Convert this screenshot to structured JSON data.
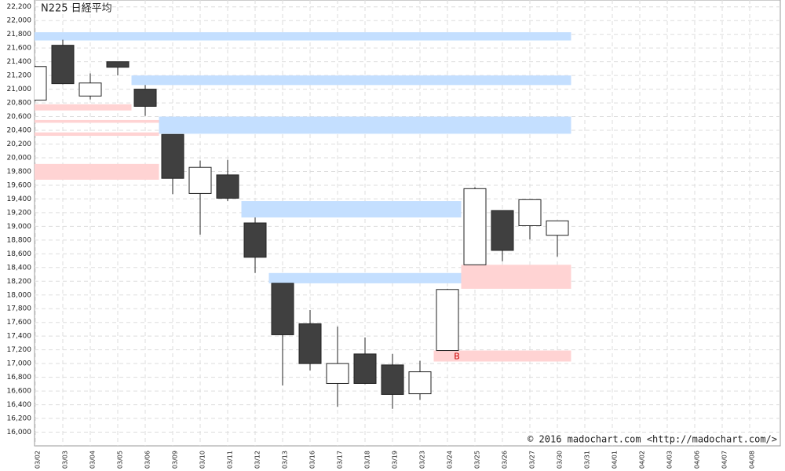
{
  "chart_data": {
    "type": "candlestick",
    "title": "N225 日経平均",
    "copyright": "© 2016 madochart.com  <http://madochart.com/>",
    "categories": [
      "03/02",
      "03/03",
      "03/04",
      "03/05",
      "03/06",
      "03/09",
      "03/10",
      "03/11",
      "03/12",
      "03/13",
      "03/16",
      "03/17",
      "03/18",
      "03/19",
      "03/23",
      "03/24",
      "03/25",
      "03/26",
      "03/27",
      "03/30",
      "03/31",
      "04/01",
      "04/02",
      "04/03",
      "04/06",
      "04/07",
      "04/08"
    ],
    "open": [
      20840,
      21640,
      20900,
      21400,
      21000,
      20340,
      19480,
      19750,
      19050,
      18170,
      17580,
      16710,
      17140,
      16980,
      16560,
      17190,
      18440,
      19230,
      19010,
      18870,
      null,
      null,
      null,
      null,
      null,
      null,
      null
    ],
    "high": [
      21340,
      21720,
      21230,
      21400,
      21060,
      20340,
      19960,
      19970,
      19130,
      18170,
      17780,
      17540,
      17380,
      17140,
      17040,
      18090,
      19570,
      19230,
      19390,
      19080,
      null,
      null,
      null,
      null,
      null,
      null,
      null
    ],
    "low": [
      20830,
      21070,
      20850,
      21200,
      20610,
      19470,
      18880,
      19370,
      18320,
      16680,
      16900,
      16370,
      16700,
      16340,
      16470,
      17190,
      18440,
      18490,
      18810,
      18560,
      null,
      null,
      null,
      null,
      null,
      null,
      null
    ],
    "close": [
      21330,
      21080,
      21090,
      21320,
      20750,
      19700,
      19860,
      19410,
      18550,
      17420,
      17000,
      17000,
      16710,
      16550,
      16880,
      18080,
      19550,
      18650,
      19390,
      19080,
      null,
      null,
      null,
      null,
      null,
      null,
      null
    ],
    "up_color": "#ffffff",
    "down_color": "#404040",
    "zones": [
      {
        "start": "03/02",
        "end": "03/30",
        "low": 21710,
        "high": 21830,
        "color": "#c4dfff"
      },
      {
        "start": "03/06",
        "end": "03/30",
        "low": 21060,
        "high": 21200,
        "color": "#c4dfff"
      },
      {
        "start": "03/09",
        "end": "03/30",
        "low": 20350,
        "high": 20600,
        "color": "#c4dfff"
      },
      {
        "start": "03/12",
        "end": "03/24",
        "low": 19130,
        "high": 19370,
        "color": "#c4dfff"
      },
      {
        "start": "03/13",
        "end": "03/24",
        "low": 18170,
        "high": 18320,
        "color": "#c4dfff"
      },
      {
        "start": "03/02",
        "end": "03/05",
        "low": 20690,
        "high": 20780,
        "color": "#ffd3d3"
      },
      {
        "start": "03/02",
        "end": "03/06",
        "low": 20510,
        "high": 20550,
        "color": "#ffd3d3"
      },
      {
        "start": "03/02",
        "end": "03/06",
        "low": 20320,
        "high": 20370,
        "color": "#ffd3d3"
      },
      {
        "start": "03/02",
        "end": "03/06",
        "low": 19680,
        "high": 19910,
        "color": "#ffd3d3"
      },
      {
        "start": "03/25",
        "end": "03/30",
        "low": 18090,
        "high": 18440,
        "color": "#ffd3d3"
      },
      {
        "start": "03/24",
        "end": "03/30",
        "low": 17030,
        "high": 17190,
        "color": "#ffd3d3"
      }
    ],
    "annotations": [
      {
        "category": "03/24",
        "label": "B",
        "color": "#cc0000"
      }
    ],
    "ylim": [
      15800,
      22300
    ],
    "yticks": [
      {
        "value": 16000,
        "label": "16,000"
      },
      {
        "value": 16200,
        "label": "16,200"
      },
      {
        "value": 16400,
        "label": "16,400"
      },
      {
        "value": 16600,
        "label": "16,600"
      },
      {
        "value": 16800,
        "label": "16,800"
      },
      {
        "value": 17000,
        "label": "17,000"
      },
      {
        "value": 17200,
        "label": "17,200"
      },
      {
        "value": 17400,
        "label": "17,400"
      },
      {
        "value": 17600,
        "label": "17,600"
      },
      {
        "value": 17800,
        "label": "17,800"
      },
      {
        "value": 18000,
        "label": "18,000"
      },
      {
        "value": 18200,
        "label": "18,200"
      },
      {
        "value": 18400,
        "label": "18,400"
      },
      {
        "value": 18600,
        "label": "18,600"
      },
      {
        "value": 18800,
        "label": "18,800"
      },
      {
        "value": 19000,
        "label": "19,000"
      },
      {
        "value": 19200,
        "label": "19,200"
      },
      {
        "value": 19400,
        "label": "19,400"
      },
      {
        "value": 19600,
        "label": "19,600"
      },
      {
        "value": 19800,
        "label": "19,800"
      },
      {
        "value": 20000,
        "label": "20,000"
      },
      {
        "value": 20200,
        "label": "20,200"
      },
      {
        "value": 20400,
        "label": "20,400"
      },
      {
        "value": 20600,
        "label": "20,600"
      },
      {
        "value": 20800,
        "label": "20,800"
      },
      {
        "value": 21000,
        "label": "21,000"
      },
      {
        "value": 21200,
        "label": "21,200"
      },
      {
        "value": 21400,
        "label": "21,400"
      },
      {
        "value": 21600,
        "label": "21,600"
      },
      {
        "value": 21800,
        "label": "21,800"
      },
      {
        "value": 22000,
        "label": "22,000"
      },
      {
        "value": 22200,
        "label": "22,200"
      }
    ],
    "grid": true
  }
}
